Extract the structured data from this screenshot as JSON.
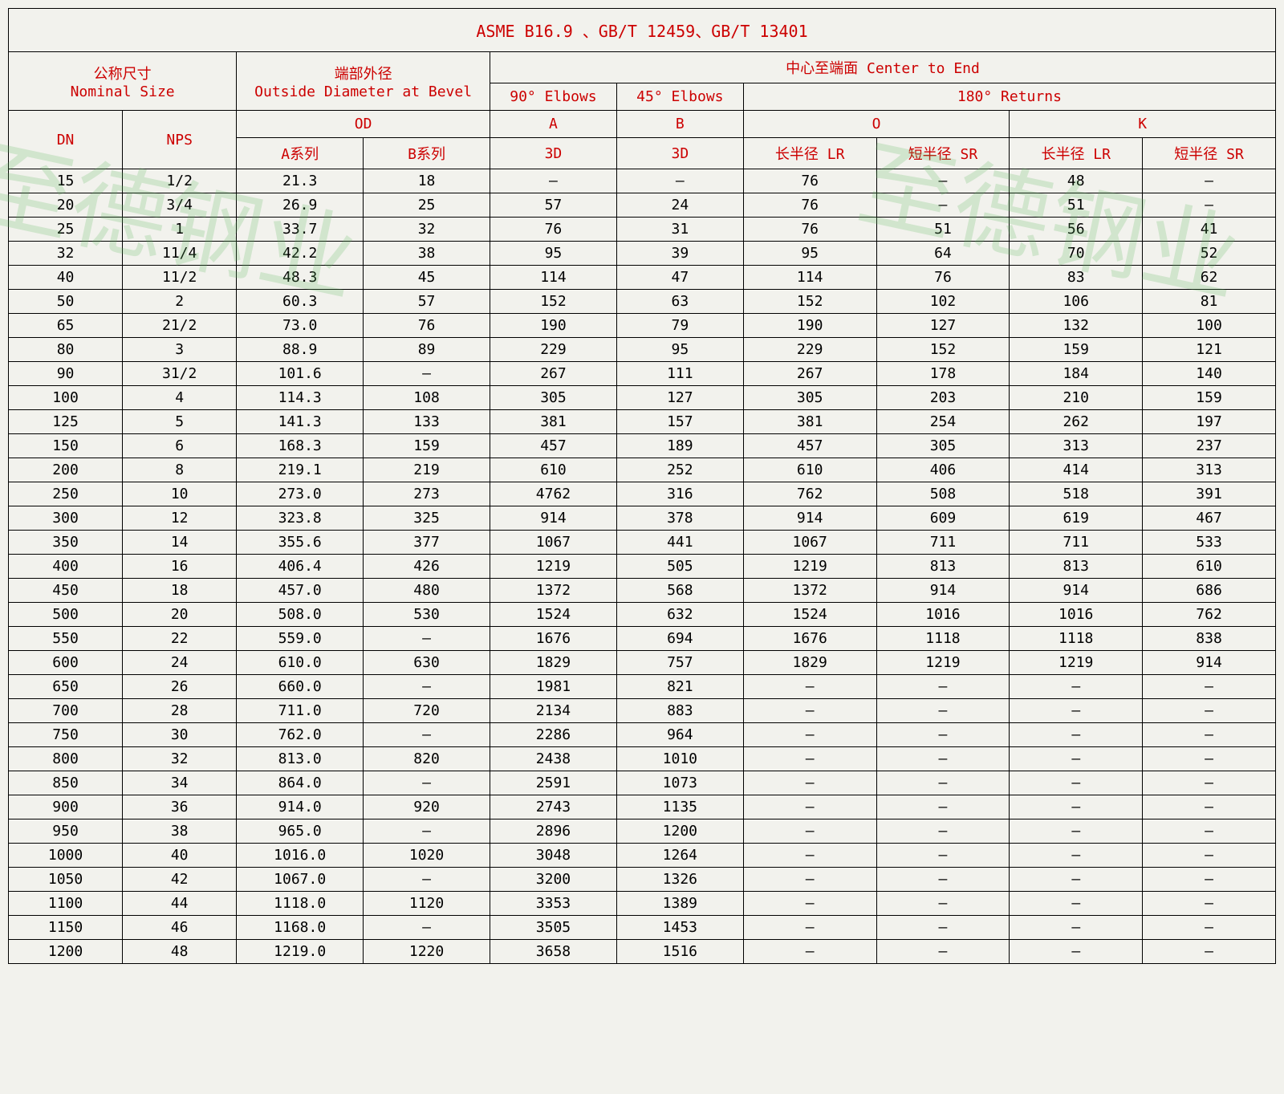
{
  "title": "ASME B16.9 、GB/T 12459、GB/T 13401",
  "headers": {
    "nominal": "公称尺寸\nNominal Size",
    "od": "端部外径\nOutside Diameter at Bevel",
    "center": "中心至端面  Center to End",
    "e90": "90° Elbows",
    "e45": "45° Elbows",
    "ret180": "180° Returns",
    "dn": "DN",
    "nps": "NPS",
    "od_label": "OD",
    "a": "A",
    "b": "B",
    "o": "O",
    "k": "K",
    "a_series": "A系列",
    "b_series": "B系列",
    "3d_a": "3D",
    "3d_b": "3D",
    "lr1": "长半径 LR",
    "sr1": "短半径 SR",
    "lr2": "长半径 LR",
    "sr2": "短半径 SR"
  },
  "watermark": "至德钢业",
  "rows": [
    [
      "15",
      "1/2",
      "21.3",
      "18",
      "—",
      "—",
      "76",
      "—",
      "48",
      "—"
    ],
    [
      "20",
      "3/4",
      "26.9",
      "25",
      "57",
      "24",
      "76",
      "—",
      "51",
      "—"
    ],
    [
      "25",
      "1",
      "33.7",
      "32",
      "76",
      "31",
      "76",
      "51",
      "56",
      "41"
    ],
    [
      "32",
      "11/4",
      "42.2",
      "38",
      "95",
      "39",
      "95",
      "64",
      "70",
      "52"
    ],
    [
      "40",
      "11/2",
      "48.3",
      "45",
      "114",
      "47",
      "114",
      "76",
      "83",
      "62"
    ],
    [
      "50",
      "2",
      "60.3",
      "57",
      "152",
      "63",
      "152",
      "102",
      "106",
      "81"
    ],
    [
      "65",
      "21/2",
      "73.0",
      "76",
      "190",
      "79",
      "190",
      "127",
      "132",
      "100"
    ],
    [
      "80",
      "3",
      "88.9",
      "89",
      "229",
      "95",
      "229",
      "152",
      "159",
      "121"
    ],
    [
      "90",
      "31/2",
      "101.6",
      "—",
      "267",
      "111",
      "267",
      "178",
      "184",
      "140"
    ],
    [
      "100",
      "4",
      "114.3",
      "108",
      "305",
      "127",
      "305",
      "203",
      "210",
      "159"
    ],
    [
      "125",
      "5",
      "141.3",
      "133",
      "381",
      "157",
      "381",
      "254",
      "262",
      "197"
    ],
    [
      "150",
      "6",
      "168.3",
      "159",
      "457",
      "189",
      "457",
      "305",
      "313",
      "237"
    ],
    [
      "200",
      "8",
      "219.1",
      "219",
      "610",
      "252",
      "610",
      "406",
      "414",
      "313"
    ],
    [
      "250",
      "10",
      "273.0",
      "273",
      "4762",
      "316",
      "762",
      "508",
      "518",
      "391"
    ],
    [
      "300",
      "12",
      "323.8",
      "325",
      "914",
      "378",
      "914",
      "609",
      "619",
      "467"
    ],
    [
      "350",
      "14",
      "355.6",
      "377",
      "1067",
      "441",
      "1067",
      "711",
      "711",
      "533"
    ],
    [
      "400",
      "16",
      "406.4",
      "426",
      "1219",
      "505",
      "1219",
      "813",
      "813",
      "610"
    ],
    [
      "450",
      "18",
      "457.0",
      "480",
      "1372",
      "568",
      "1372",
      "914",
      "914",
      "686"
    ],
    [
      "500",
      "20",
      "508.0",
      "530",
      "1524",
      "632",
      "1524",
      "1016",
      "1016",
      "762"
    ],
    [
      "550",
      "22",
      "559.0",
      "—",
      "1676",
      "694",
      "1676",
      "1118",
      "1118",
      "838"
    ],
    [
      "600",
      "24",
      "610.0",
      "630",
      "1829",
      "757",
      "1829",
      "1219",
      "1219",
      "914"
    ],
    [
      "650",
      "26",
      "660.0",
      "—",
      "1981",
      "821",
      "—",
      "—",
      "—",
      "—"
    ],
    [
      "700",
      "28",
      "711.0",
      "720",
      "2134",
      "883",
      "—",
      "—",
      "—",
      "—"
    ],
    [
      "750",
      "30",
      "762.0",
      "—",
      "2286",
      "964",
      "—",
      "—",
      "—",
      "—"
    ],
    [
      "800",
      "32",
      "813.0",
      "820",
      "2438",
      "1010",
      "—",
      "—",
      "—",
      "—"
    ],
    [
      "850",
      "34",
      "864.0",
      "—",
      "2591",
      "1073",
      "—",
      "—",
      "—",
      "—"
    ],
    [
      "900",
      "36",
      "914.0",
      "920",
      "2743",
      "1135",
      "—",
      "—",
      "—",
      "—"
    ],
    [
      "950",
      "38",
      "965.0",
      "—",
      "2896",
      "1200",
      "—",
      "—",
      "—",
      "—"
    ],
    [
      "1000",
      "40",
      "1016.0",
      "1020",
      "3048",
      "1264",
      "—",
      "—",
      "—",
      "—"
    ],
    [
      "1050",
      "42",
      "1067.0",
      "—",
      "3200",
      "1326",
      "—",
      "—",
      "—",
      "—"
    ],
    [
      "1100",
      "44",
      "1118.0",
      "1120",
      "3353",
      "1389",
      "—",
      "—",
      "—",
      "—"
    ],
    [
      "1150",
      "46",
      "1168.0",
      "—",
      "3505",
      "1453",
      "—",
      "—",
      "—",
      "—"
    ],
    [
      "1200",
      "48",
      "1219.0",
      "1220",
      "3658",
      "1516",
      "—",
      "—",
      "—",
      "—"
    ]
  ],
  "colwidths": [
    "9%",
    "9%",
    "10%",
    "10%",
    "10%",
    "10%",
    "10.5%",
    "10.5%",
    "10.5%",
    "10.5%"
  ]
}
